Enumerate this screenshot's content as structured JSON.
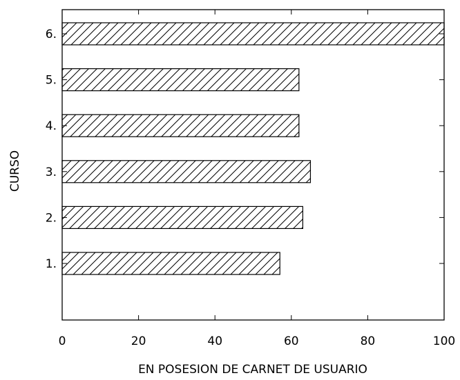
{
  "chart_data": {
    "type": "bar",
    "orientation": "horizontal",
    "categories": [
      "1.",
      "2.",
      "3.",
      "4.",
      "5.",
      "6."
    ],
    "values": [
      57,
      63,
      65,
      62,
      62,
      100
    ],
    "xlabel": "EN POSESION DE CARNET DE USUARIO",
    "ylabel": "CURSO",
    "xlim": [
      0,
      100
    ],
    "xticks": [
      "0",
      "20",
      "40",
      "60",
      "80",
      "100"
    ],
    "grid": false,
    "bar_fill": "diagonal-hatch",
    "colors": {
      "bar_stroke": "#000000",
      "hatch": "#000000",
      "background": "#ffffff"
    }
  }
}
